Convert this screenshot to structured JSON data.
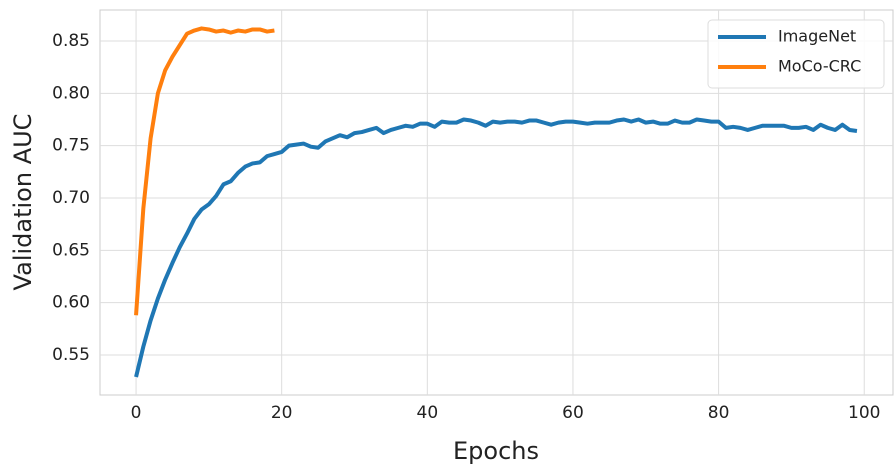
{
  "chart_data": {
    "type": "line",
    "x_label": "Epochs",
    "y_label": "Validation AUC",
    "xlim": [
      -4.95,
      103.95
    ],
    "ylim": [
      0.5118,
      0.8796
    ],
    "xticks": [
      0,
      20,
      40,
      60,
      80,
      100
    ],
    "yticks": [
      0.55,
      {
        "value": 0.6,
        "label": "0.60"
      },
      0.65,
      {
        "value": 0.7,
        "label": "0.70"
      },
      0.75,
      {
        "value": 0.8,
        "label": "0.80"
      },
      0.85
    ],
    "grid": true,
    "legend": "upper right",
    "series": [
      {
        "name": "ImageNet",
        "color": "#1f77b4",
        "x": [
          0,
          1,
          2,
          3,
          4,
          5,
          6,
          7,
          8,
          9,
          10,
          11,
          12,
          13,
          14,
          15,
          16,
          17,
          18,
          19,
          20,
          21,
          22,
          23,
          24,
          25,
          26,
          27,
          28,
          29,
          30,
          31,
          32,
          33,
          34,
          35,
          36,
          37,
          38,
          39,
          40,
          41,
          42,
          43,
          44,
          45,
          46,
          47,
          48,
          49,
          50,
          51,
          52,
          53,
          54,
          55,
          56,
          57,
          58,
          59,
          60,
          61,
          62,
          63,
          64,
          65,
          66,
          67,
          68,
          69,
          70,
          71,
          72,
          73,
          74,
          75,
          76,
          77,
          78,
          79,
          80,
          81,
          82,
          83,
          84,
          85,
          86,
          87,
          88,
          89,
          90,
          91,
          92,
          93,
          94,
          95,
          96,
          97,
          98,
          99
        ],
        "values": [
          0.529,
          0.558,
          0.583,
          0.604,
          0.622,
          0.638,
          0.653,
          0.666,
          0.68,
          0.689,
          0.694,
          0.702,
          0.713,
          0.716,
          0.724,
          0.73,
          0.733,
          0.734,
          0.74,
          0.742,
          0.744,
          0.75,
          0.751,
          0.752,
          0.749,
          0.748,
          0.754,
          0.757,
          0.76,
          0.758,
          0.762,
          0.763,
          0.765,
          0.767,
          0.762,
          0.765,
          0.767,
          0.769,
          0.768,
          0.771,
          0.771,
          0.768,
          0.773,
          0.772,
          0.772,
          0.775,
          0.774,
          0.772,
          0.769,
          0.773,
          0.772,
          0.773,
          0.773,
          0.772,
          0.774,
          0.774,
          0.772,
          0.77,
          0.772,
          0.773,
          0.773,
          0.772,
          0.771,
          0.772,
          0.772,
          0.772,
          0.774,
          0.775,
          0.773,
          0.775,
          0.772,
          0.773,
          0.771,
          0.771,
          0.774,
          0.772,
          0.772,
          0.775,
          0.774,
          0.773,
          0.773,
          0.767,
          0.768,
          0.767,
          0.765,
          0.767,
          0.769,
          0.769,
          0.769,
          0.769,
          0.767,
          0.767,
          0.768,
          0.765,
          0.77,
          0.767,
          0.765,
          0.77,
          0.765,
          0.764
        ]
      },
      {
        "name": "MoCo-CRC",
        "color": "#ff7f0e",
        "x": [
          0,
          1,
          2,
          3,
          4,
          5,
          6,
          7,
          8,
          9,
          10,
          11,
          12,
          13,
          14,
          15,
          16,
          17,
          18,
          19
        ],
        "values": [
          0.588,
          0.69,
          0.757,
          0.8,
          0.822,
          0.835,
          0.846,
          0.857,
          0.86,
          0.862,
          0.861,
          0.859,
          0.86,
          0.858,
          0.86,
          0.859,
          0.861,
          0.861,
          0.859,
          0.86
        ]
      }
    ]
  }
}
